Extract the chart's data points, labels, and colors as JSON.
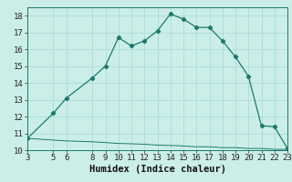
{
  "xlabel": "Humidex (Indice chaleur)",
  "bg_color": "#cceee8",
  "grid_color": "#aaddda",
  "line_color": "#1a7a6e",
  "line1_x": [
    3,
    5,
    6,
    8,
    9,
    10,
    11,
    12,
    13,
    14,
    15,
    16,
    17,
    18,
    19,
    20,
    21,
    22,
    23
  ],
  "line1_y": [
    10.7,
    12.2,
    13.1,
    14.3,
    15.0,
    16.7,
    16.2,
    16.5,
    17.1,
    18.1,
    17.8,
    17.3,
    17.3,
    16.5,
    15.55,
    14.4,
    11.45,
    11.4,
    10.1
  ],
  "line2_x": [
    3,
    5,
    6,
    8,
    9,
    10,
    11,
    12,
    13,
    14,
    15,
    16,
    17,
    18,
    19,
    20,
    21,
    22,
    23
  ],
  "line2_y": [
    10.7,
    10.6,
    10.55,
    10.5,
    10.45,
    10.4,
    10.38,
    10.35,
    10.3,
    10.28,
    10.25,
    10.2,
    10.2,
    10.15,
    10.15,
    10.1,
    10.1,
    10.05,
    10.05
  ],
  "xlim": [
    3,
    23
  ],
  "ylim": [
    10,
    18.5
  ],
  "xticks": [
    3,
    5,
    6,
    8,
    9,
    10,
    11,
    12,
    13,
    14,
    15,
    16,
    17,
    18,
    19,
    20,
    21,
    22,
    23
  ],
  "yticks": [
    10,
    11,
    12,
    13,
    14,
    15,
    16,
    17,
    18
  ],
  "xlabel_fontsize": 7.5,
  "tick_fontsize": 6.5
}
